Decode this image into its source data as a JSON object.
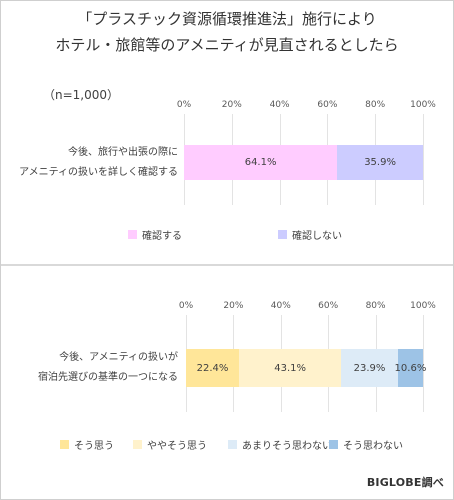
{
  "title_line1": "「プラスチック資源循環推進法」施行により",
  "title_line2": "ホテル・旅館等のアメニティが見直されるとしたら",
  "sample_note": "（n=1,000）",
  "credit": "BIGLOBE調べ",
  "chart_data": [
    {
      "type": "bar",
      "orientation": "horizontal-stacked-100",
      "x_ticks": [
        "0%",
        "20%",
        "40%",
        "60%",
        "80%",
        "100%"
      ],
      "xlim": [
        0,
        100
      ],
      "categories": [
        "今後、旅行や出張の際に\nアメニティの扱いを詳しく確認する"
      ],
      "category_lines": [
        "今後、旅行や出張の際に",
        "アメニティの扱いを詳しく確認する"
      ],
      "series": [
        {
          "name": "確認する",
          "values": [
            64.1
          ],
          "label": "64.1%",
          "color": "#ffccff"
        },
        {
          "name": "確認しない",
          "values": [
            35.9
          ],
          "label": "35.9%",
          "color": "#ccccff"
        }
      ],
      "legend_position": "bottom"
    },
    {
      "type": "bar",
      "orientation": "horizontal-stacked-100",
      "x_ticks": [
        "0%",
        "20%",
        "40%",
        "60%",
        "80%",
        "100%"
      ],
      "xlim": [
        0,
        100
      ],
      "categories": [
        "今後、アメニティの扱いが\n宿泊先選びの基準の一つになる"
      ],
      "category_lines": [
        "今後、アメニティの扱いが",
        "宿泊先選びの基準の一つになる"
      ],
      "series": [
        {
          "name": "そう思う",
          "values": [
            22.4
          ],
          "label": "22.4%",
          "color": "#ffe699"
        },
        {
          "name": "ややそう思う",
          "values": [
            43.1
          ],
          "label": "43.1%",
          "color": "#fff2cc"
        },
        {
          "name": "あまりそう思わない",
          "values": [
            23.9
          ],
          "label": "23.9%",
          "color": "#ddebf7"
        },
        {
          "name": "そう思わない",
          "values": [
            10.6
          ],
          "label": "10.6%",
          "color": "#9dc3e6"
        }
      ],
      "legend_position": "bottom"
    }
  ]
}
